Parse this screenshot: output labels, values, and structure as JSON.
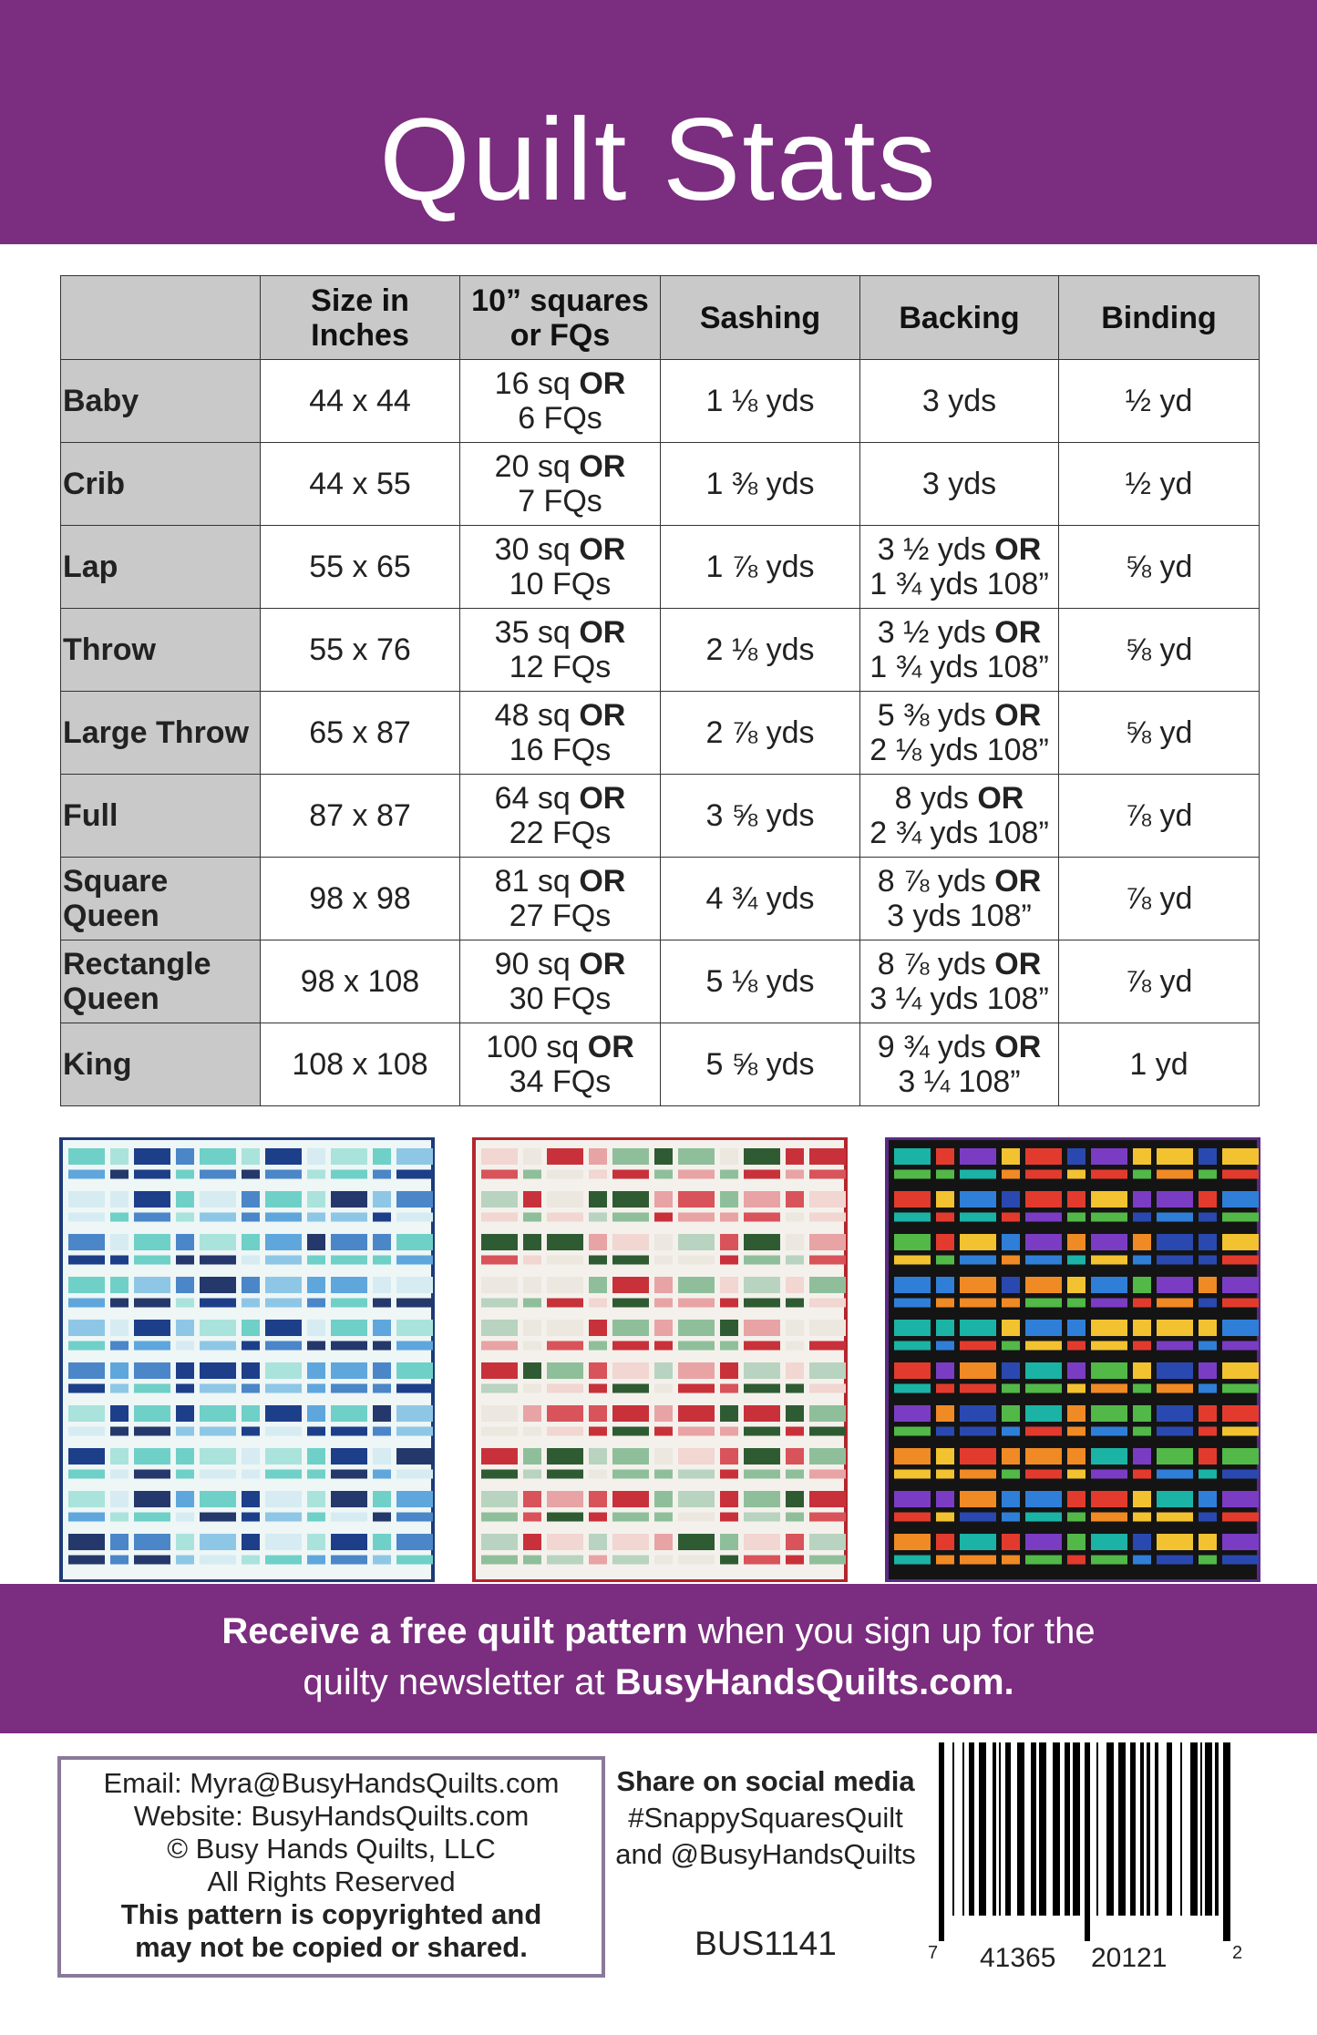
{
  "header": {
    "title": "Quilt Stats"
  },
  "table": {
    "columns": [
      "Size in Inches",
      "10” squares or FQs",
      "Sashing",
      "Backing",
      "Binding"
    ],
    "rows": [
      {
        "name": "Baby",
        "size": "44 x 44",
        "squares": [
          "16 sq",
          "OR",
          "6 FQs"
        ],
        "sashing": "1 ⅛ yds",
        "backing": "3 yds",
        "binding": "½ yd"
      },
      {
        "name": "Crib",
        "size": "44 x 55",
        "squares": [
          "20 sq",
          "OR",
          "7 FQs"
        ],
        "sashing": "1 ⅜ yds",
        "backing": "3 yds",
        "binding": "½ yd"
      },
      {
        "name": "Lap",
        "size": "55 x 65",
        "squares": [
          "30 sq",
          "OR",
          "10 FQs"
        ],
        "sashing": "1 ⅞ yds",
        "backing": [
          "3 ½ yds",
          "OR",
          "1 ¾ yds 108”"
        ],
        "binding": "⅝ yd"
      },
      {
        "name": "Throw",
        "size": "55 x 76",
        "squares": [
          "35 sq",
          "OR",
          "12 FQs"
        ],
        "sashing": "2 ⅛ yds",
        "backing": [
          "3 ½ yds",
          "OR",
          "1 ¾ yds 108”"
        ],
        "binding": "⅝ yd"
      },
      {
        "name": "Large Throw",
        "size": "65 x 87",
        "squares": [
          "48 sq",
          "OR",
          "16 FQs"
        ],
        "sashing": "2 ⅞ yds",
        "backing": [
          "5 ⅜ yds",
          "OR",
          "2 ⅛ yds 108”"
        ],
        "binding": "⅝ yd"
      },
      {
        "name": "Full",
        "size": "87 x 87",
        "squares": [
          "64 sq",
          "OR",
          "22 FQs"
        ],
        "sashing": "3 ⅝ yds",
        "backing": [
          "8 yds",
          "OR",
          "2 ¾ yds 108”"
        ],
        "binding": "⅞ yd"
      },
      {
        "name": "Square Queen",
        "size": "98 x 98",
        "squares": [
          "81 sq",
          "OR",
          "27 FQs"
        ],
        "sashing": "4 ¾ yds",
        "backing": [
          "8 ⅞ yds",
          "OR",
          "3 yds 108”"
        ],
        "binding": "⅞ yd"
      },
      {
        "name": "Rectangle Queen",
        "size": "98 x 108",
        "squares": [
          "90 sq",
          "OR",
          "30 FQs"
        ],
        "sashing": "5 ⅛ yds",
        "backing": [
          "8 ⅞ yds",
          "OR",
          "3 ¼ yds 108”"
        ],
        "binding": "⅞ yd"
      },
      {
        "name": "King",
        "size": "108 x 108",
        "squares": [
          "100 sq",
          "OR",
          "34 FQs"
        ],
        "sashing": "5 ⅝ yds",
        "backing": [
          "9 ¾ yds",
          "OR",
          "3 ¼ 108”"
        ],
        "binding": "1 yd"
      }
    ]
  },
  "banner": {
    "bold1": "Receive a free quilt pattern",
    "text": "when you sign up for the quilty newsletter at",
    "bold2": "BusyHandsQuilts.com."
  },
  "contact": {
    "lines": [
      "Email: Myra@BusyHandsQuilts.com",
      "Website: BusyHandsQuilts.com",
      "© Busy Hands Quilts, LLC",
      "All Rights Reserved"
    ],
    "notice": "This pattern is copyrighted and may not be copied or shared."
  },
  "social": {
    "heading": "Share on social media",
    "lines": [
      "#SnappySquaresQuilt",
      "and @BusyHandsQuilts"
    ]
  },
  "code": "BUS1141",
  "barcode": [
    "7",
    "41365",
    "20121",
    "2"
  ]
}
